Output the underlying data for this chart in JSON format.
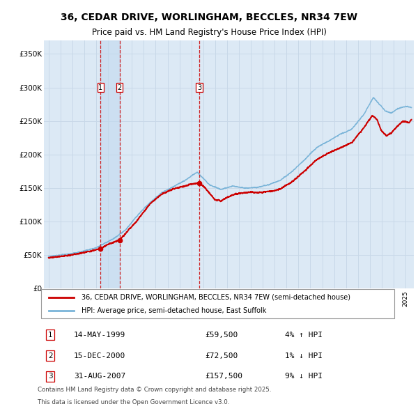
{
  "title": "36, CEDAR DRIVE, WORLINGHAM, BECCLES, NR34 7EW",
  "subtitle": "Price paid vs. HM Land Registry's House Price Index (HPI)",
  "title_fontsize": 10,
  "subtitle_fontsize": 8.5,
  "background_color": "#ffffff",
  "plot_bg_color": "#dce9f5",
  "grid_color": "#c8d8e8",
  "ylabel": "",
  "xlabel": "",
  "ylim": [
    0,
    370000
  ],
  "yticks": [
    0,
    50000,
    100000,
    150000,
    200000,
    250000,
    300000,
    350000
  ],
  "ytick_labels": [
    "£0",
    "£50K",
    "£100K",
    "£150K",
    "£200K",
    "£250K",
    "£300K",
    "£350K"
  ],
  "hpi_color": "#7ab4d8",
  "price_color": "#cc0000",
  "vline_color": "#cc0000",
  "shade_color": "#c0d8ee",
  "purchases": [
    {
      "num": 1,
      "date_dec": 1999.37,
      "price": 59500,
      "label": "14-MAY-1999",
      "pct": "4%",
      "dir": "↑"
    },
    {
      "num": 2,
      "date_dec": 2000.96,
      "price": 72500,
      "label": "15-DEC-2000",
      "pct": "1%",
      "dir": "↓"
    },
    {
      "num": 3,
      "date_dec": 2007.66,
      "price": 157500,
      "label": "31-AUG-2007",
      "pct": "9%",
      "dir": "↓"
    }
  ],
  "legend_entries": [
    "36, CEDAR DRIVE, WORLINGHAM, BECCLES, NR34 7EW (semi-detached house)",
    "HPI: Average price, semi-detached house, East Suffolk"
  ],
  "footer_lines": [
    "Contains HM Land Registry data © Crown copyright and database right 2025.",
    "This data is licensed under the Open Government Licence v3.0."
  ],
  "xstart": 1995.0,
  "xend": 2025.5
}
